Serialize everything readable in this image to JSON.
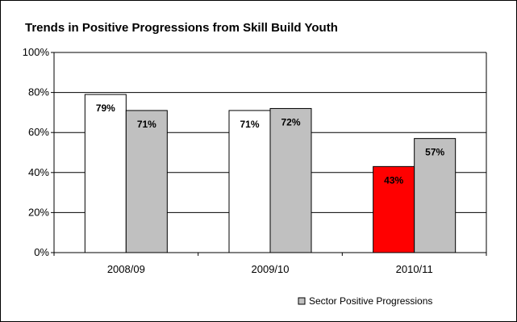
{
  "chart_data": {
    "type": "bar",
    "title": "Trends in Positive Progressions from Skill Build Youth",
    "categories": [
      "2008/09",
      "2009/10",
      "2010/11"
    ],
    "series": [
      {
        "values": [
          79,
          71,
          43
        ],
        "value_labels": [
          "79%",
          "71%",
          "43%"
        ],
        "colors": [
          "#ffffff",
          "#ffffff",
          "#ff0000"
        ]
      },
      {
        "name": "Sector Positive Progressions",
        "values": [
          71,
          72,
          57
        ],
        "value_labels": [
          "71%",
          "72%",
          "57%"
        ],
        "colors": [
          "#c0c0c0",
          "#c0c0c0",
          "#c0c0c0"
        ]
      }
    ],
    "ylim": [
      0,
      100
    ],
    "yticks": [
      0,
      20,
      40,
      60,
      80,
      100
    ],
    "ytick_labels": [
      "0%",
      "20%",
      "40%",
      "60%",
      "80%",
      "100%"
    ],
    "grid": true,
    "legend": {
      "placement": "bottom-right",
      "entries": [
        {
          "label": "Sector Positive Progressions",
          "color": "#c0c0c0"
        }
      ]
    }
  }
}
